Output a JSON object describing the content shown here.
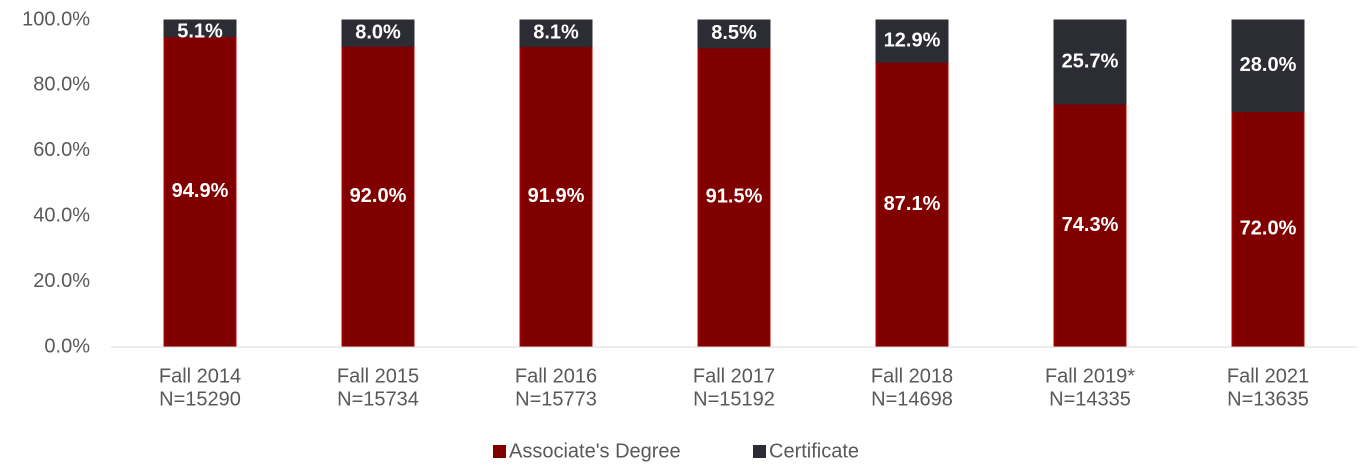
{
  "chart_data": {
    "type": "stacked_bar",
    "categories": [
      [
        "Fall 2014",
        "N=15290"
      ],
      [
        "Fall 2015",
        "N=15734"
      ],
      [
        "Fall 2016",
        "N=15773"
      ],
      [
        "Fall 2017",
        "N=15192"
      ],
      [
        "Fall 2018",
        "N=14698"
      ],
      [
        "Fall 2019*",
        "N=14335"
      ],
      [
        "Fall 2021",
        "N=13635"
      ]
    ],
    "series": [
      {
        "name": "Associate's Degree",
        "color": "#800000",
        "values": [
          94.9,
          92.0,
          91.9,
          91.5,
          87.1,
          74.3,
          72.0
        ],
        "value_labels": [
          "94.9%",
          "92.0%",
          "91.9%",
          "91.5%",
          "87.1%",
          "74.3%",
          "72.0%"
        ]
      },
      {
        "name": "Certificate",
        "color": "#2b2c34",
        "values": [
          5.1,
          8.0,
          8.1,
          8.5,
          12.9,
          25.7,
          28.0
        ],
        "value_labels": [
          "5.1%",
          "8.0%",
          "8.1%",
          "8.5%",
          "12.9%",
          "25.7%",
          "28.0%"
        ]
      }
    ],
    "ylim": [
      0,
      100
    ],
    "yticks": [
      {
        "value": 0,
        "label": "0.0%"
      },
      {
        "value": 20,
        "label": "20.0%"
      },
      {
        "value": 40,
        "label": "40.0%"
      },
      {
        "value": 60,
        "label": "60.0%"
      },
      {
        "value": 80,
        "label": "80.0%"
      },
      {
        "value": 100,
        "label": "100.0%"
      }
    ],
    "legend": "bottom"
  }
}
